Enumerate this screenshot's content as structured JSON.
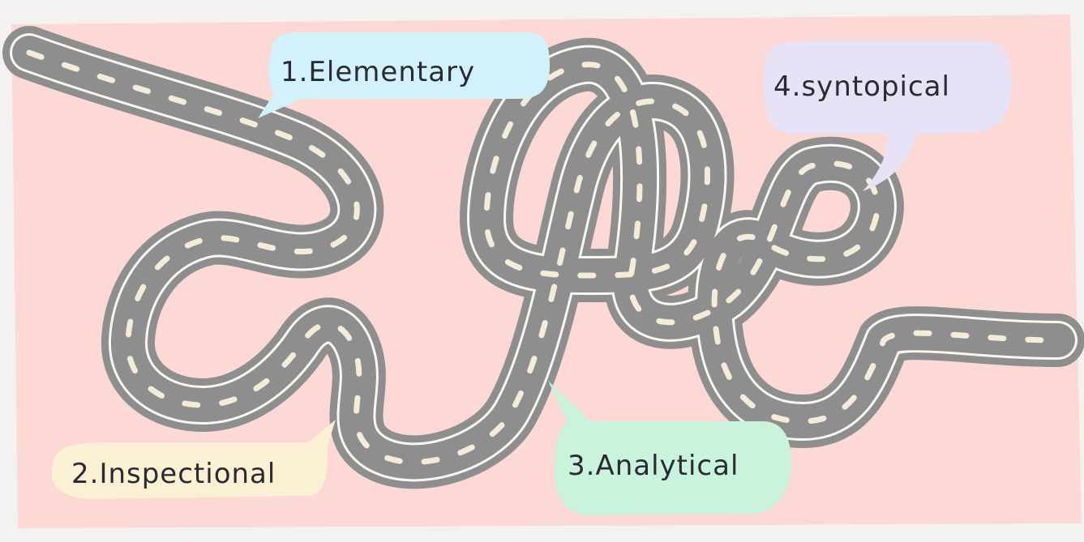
{
  "illustration": {
    "subject": "winding-road-reading-levels",
    "colors": {
      "background": "#f3f2f1",
      "panel": "#fdd9d6",
      "road": "#8e8e8e",
      "road_edge": "#fbf7ef",
      "road_dash": "#f4ecd9",
      "bubble_elementary": "#d3f1fb",
      "bubble_inspectional": "#fbf0d3",
      "bubble_analytical": "#c9f3dc",
      "bubble_syntopical": "#e8e2f7",
      "text": "#2a2a33"
    },
    "labels": {
      "elementary": "1.Elementary",
      "inspectional": "2.Inspectional",
      "analytical": "3.Analytical",
      "syntopical": "4.syntopical"
    }
  }
}
